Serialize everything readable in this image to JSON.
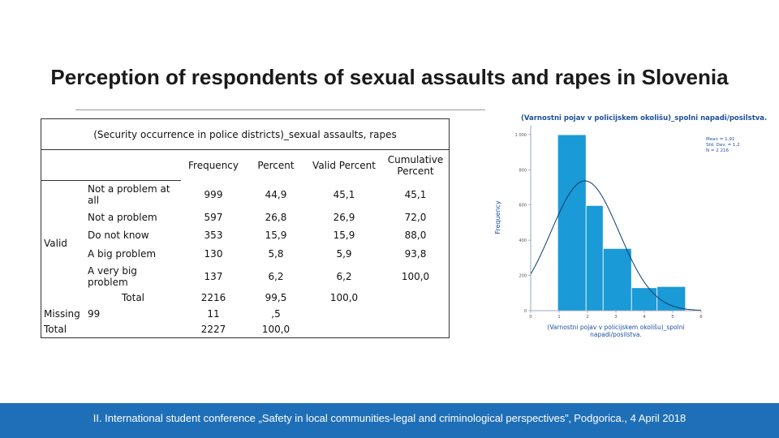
{
  "title": "Perception of respondents of sexual assaults and rapes in Slovenia",
  "table": {
    "caption": "(Security occurrence in police districts)_sexual assaults, rapes",
    "headers": [
      "Frequency",
      "Percent",
      "Valid Percent",
      "Cumulative Percent"
    ],
    "group_valid": "Valid",
    "group_missing": "Missing",
    "group_total": "Total",
    "rows": [
      {
        "label": "Not a problem at all",
        "frequency": "999",
        "percent": "44,9",
        "valid_percent": "45,1",
        "cumulative": "45,1"
      },
      {
        "label": "Not a problem",
        "frequency": "597",
        "percent": "26,8",
        "valid_percent": "26,9",
        "cumulative": "72,0"
      },
      {
        "label": "Do not know",
        "frequency": "353",
        "percent": "15,9",
        "valid_percent": "15,9",
        "cumulative": "88,0"
      },
      {
        "label": "A big problem",
        "frequency": "130",
        "percent": "5,8",
        "valid_percent": "5,9",
        "cumulative": "93,8"
      },
      {
        "label": "A very big problem",
        "frequency": "137",
        "percent": "6,2",
        "valid_percent": "6,2",
        "cumulative": "100,0"
      }
    ],
    "valid_total": {
      "label": "Total",
      "frequency": "2216",
      "percent": "99,5",
      "valid_percent": "100,0"
    },
    "missing": {
      "label": "99",
      "frequency": "11",
      "percent": ",5"
    },
    "grand_total": {
      "frequency": "2227",
      "percent": "100,0"
    }
  },
  "chart_data": {
    "type": "bar",
    "title": "(Varnostni pojav v policijskem okolišu)_spolni napadi/posilstva.",
    "xlabel": "(Varnostni pojav v policijskem okolišu)_spolni napadi/posilstva.",
    "ylabel": "Frequency",
    "x_ticks": [
      "0",
      "1",
      "2",
      "3",
      "4",
      "5",
      "6"
    ],
    "y_ticks": [
      "0",
      "200",
      "400",
      "600",
      "800",
      "1 000"
    ],
    "xlim": [
      0,
      6
    ],
    "ylim": [
      0,
      1050
    ],
    "bins": [
      {
        "start": 0.95,
        "end": 1.95,
        "value": 999
      },
      {
        "start": 1.95,
        "end": 2.55,
        "value": 597
      },
      {
        "start": 2.55,
        "end": 3.55,
        "value": 353
      },
      {
        "start": 3.55,
        "end": 4.45,
        "value": 130
      },
      {
        "start": 4.45,
        "end": 5.45,
        "value": 137
      }
    ],
    "normal_curve": {
      "mean": 1.91,
      "sd": 1.2,
      "n": 2216,
      "bin_width": 1
    },
    "legend": [
      "Mean = 1,91",
      "Std. Dev. = 1,2",
      "N = 2 216"
    ],
    "bar_color": "#1a9ad6",
    "curve_color": "#0a3a6a"
  },
  "footer": "II. International student conference „Safety in local communities-legal and criminological perspectives”‚ Podgorica., 4 April 2018",
  "footer_color": "#1f6fb8"
}
